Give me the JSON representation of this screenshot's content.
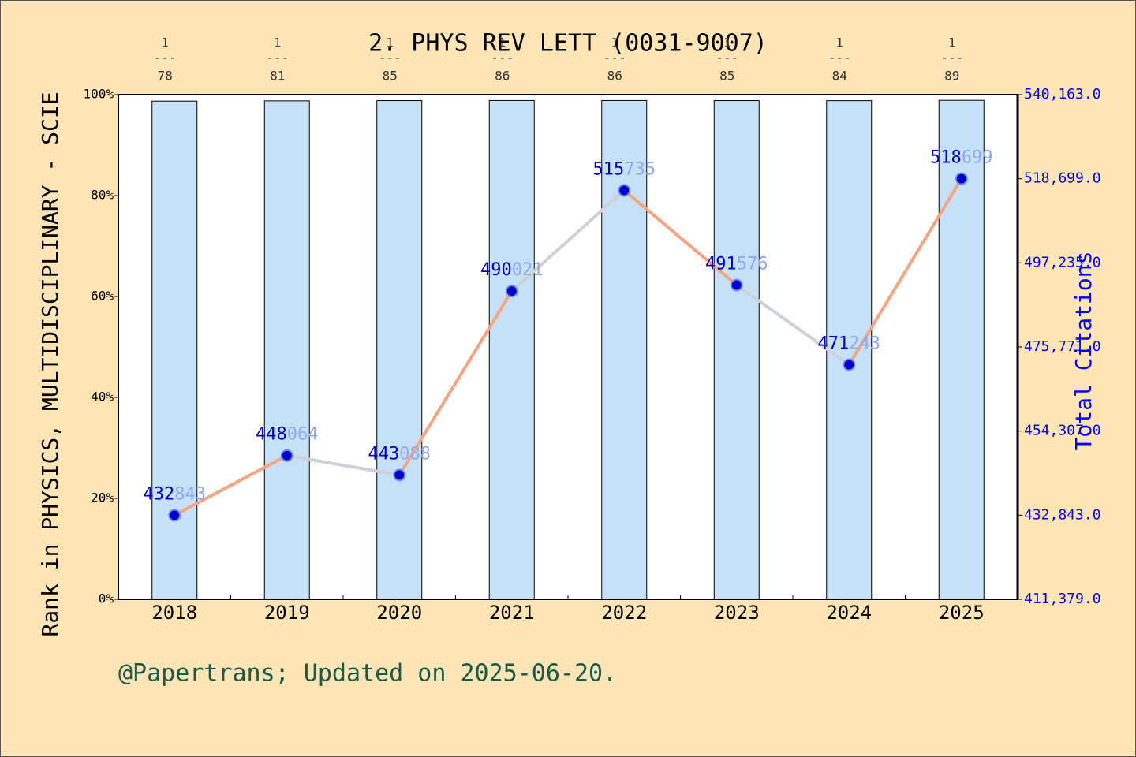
{
  "chart_data": {
    "type": "bar_line",
    "title": "2. PHYS REV LETT (0031-9007)",
    "y_label": "Rank in PHYSICS, MULTIDISCIPLINARY - SCIE",
    "y2_label": "Total Citations",
    "footer": "@Papertrans; Updated on 2025-06-20.",
    "categories": [
      "2018",
      "2019",
      "2020",
      "2021",
      "2022",
      "2023",
      "2024",
      "2025"
    ],
    "ranks": [
      1,
      1,
      1,
      1,
      1,
      1,
      1,
      1
    ],
    "rank_totals": [
      78,
      81,
      85,
      86,
      86,
      85,
      84,
      89
    ],
    "series": [
      {
        "name": "Rank percentile",
        "type": "bar",
        "color": "#c6e0f7",
        "values": [
          98.72,
          98.77,
          98.82,
          98.84,
          98.84,
          98.82,
          98.81,
          98.88
        ]
      },
      {
        "name": "Total Citations",
        "type": "line",
        "axis": "y2",
        "color": "#0000cc",
        "segment_colors": [
          "#f4a582",
          "#d0d0d8"
        ],
        "values": [
          432843,
          448064,
          443088,
          490021,
          515735,
          491576,
          471243,
          518699
        ]
      }
    ],
    "ylim": [
      0,
      100
    ],
    "yticks": [
      {
        "value": 0,
        "label": "0%"
      },
      {
        "value": 20,
        "label": "20%"
      },
      {
        "value": 40,
        "label": "40%"
      },
      {
        "value": 60,
        "label": "60%"
      },
      {
        "value": 80,
        "label": "80%"
      },
      {
        "value": 100,
        "label": "100%"
      }
    ],
    "y2lim": [
      411379,
      540163
    ],
    "y2ticks": [
      {
        "value": 411379,
        "label": "411,379.0"
      },
      {
        "value": 432843,
        "label": "432,843.0"
      },
      {
        "value": 454307,
        "label": "454,307.0"
      },
      {
        "value": 475771,
        "label": "475,771.0"
      },
      {
        "value": 497235,
        "label": "497,235.0"
      },
      {
        "value": 518699,
        "label": "518,699.0"
      },
      {
        "value": 540163,
        "label": "540,163.0"
      }
    ]
  }
}
